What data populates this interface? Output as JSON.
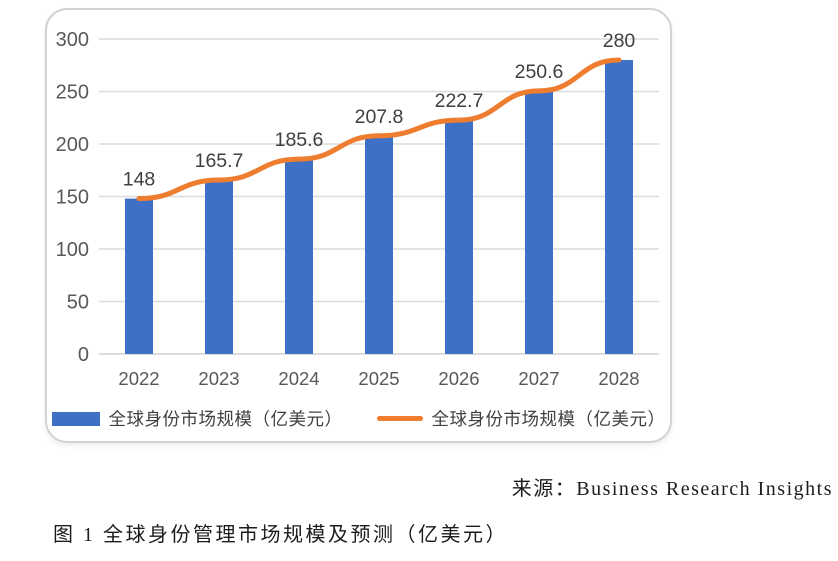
{
  "chart_data": {
    "type": "bar",
    "combo": "bar+line",
    "categories": [
      "2022",
      "2023",
      "2024",
      "2025",
      "2026",
      "2027",
      "2028"
    ],
    "series": [
      {
        "name": "全球身份市场规模（亿美元）",
        "type": "bar",
        "color": "#3e70c6",
        "values": [
          148,
          165.7,
          185.6,
          207.8,
          222.7,
          250.6,
          280
        ]
      },
      {
        "name": "全球身份市场规模（亿美元）",
        "type": "line",
        "color": "#ee7d2f",
        "values": [
          148,
          165.7,
          185.6,
          207.8,
          222.7,
          250.6,
          280
        ]
      }
    ],
    "data_labels": [
      "148",
      "165.7",
      "185.6",
      "207.8",
      "222.7",
      "250.6",
      "280"
    ],
    "title": "",
    "xlabel": "",
    "ylabel": "",
    "ylim": [
      0,
      300
    ],
    "ytick_step": 50,
    "yticks": [
      "0",
      "50",
      "100",
      "150",
      "200",
      "250",
      "300"
    ],
    "grid": true,
    "legend_position": "bottom",
    "colors": {
      "gridline": "#dcdcdc",
      "axis_line": "#d0d0d0",
      "tick_label": "#595959",
      "data_label": "#3f3f3f"
    }
  },
  "source_line": {
    "text": "来源：Business Research Insights"
  },
  "caption": {
    "text": "图 1  全球身份管理市场规模及预测（亿美元）"
  }
}
